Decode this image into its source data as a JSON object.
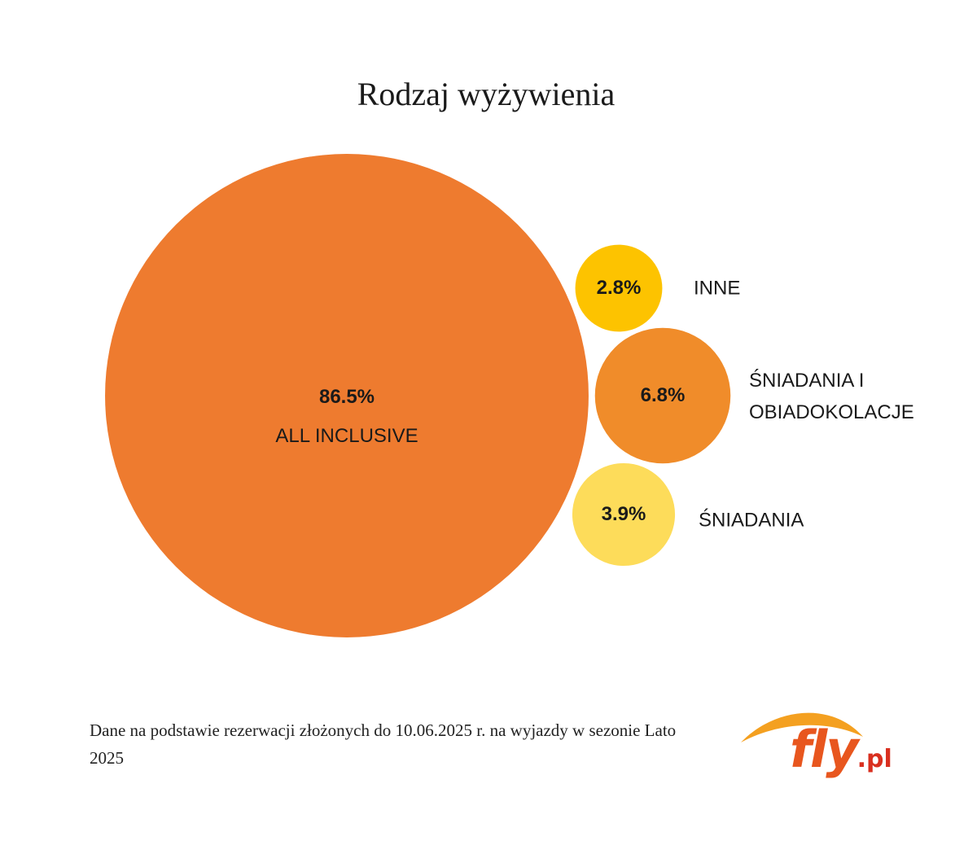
{
  "chart_data": {
    "type": "bubble",
    "title": "Rodzaj wyżywienia",
    "categories": [
      "ALL INCLUSIVE",
      "INNE",
      "ŚNIADANIA I OBIADOKOLACJE",
      "ŚNIADANIA"
    ],
    "values": [
      86.5,
      2.8,
      6.8,
      3.9
    ],
    "value_labels": [
      "86.5%",
      "2.8%",
      "6.8%",
      "3.9%"
    ],
    "colors": [
      "#ee7b2f",
      "#fdc300",
      "#f08c2a",
      "#fddc5a"
    ],
    "footnote": "Dane na podstawie rezerwacji złożonych do 10.06.2025 r. na wyjazdy w sezonie Lato 2025"
  },
  "logo": {
    "text": "fly",
    "suffix": ".pl"
  }
}
